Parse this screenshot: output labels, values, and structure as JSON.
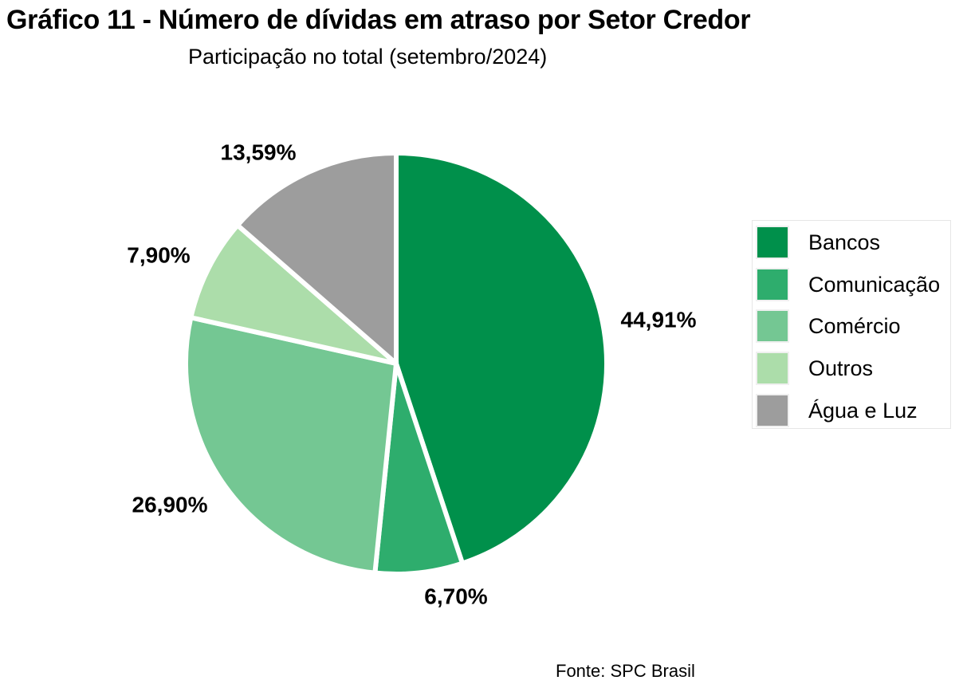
{
  "title": "Gráfico 11 - Número de dívidas em atraso por Setor Credor",
  "subtitle": "Participação no total (setembro/2024)",
  "source": "Fonte: SPC Brasil",
  "chart_data": {
    "type": "pie",
    "title": "Gráfico 11 - Número de dívidas em atraso por Setor Credor",
    "subtitle": "Participação no total (setembro/2024)",
    "categories": [
      "Bancos",
      "Comunicação",
      "Comércio",
      "Outros",
      "Água e Luz"
    ],
    "values": [
      44.91,
      6.7,
      26.9,
      7.9,
      13.59
    ],
    "labels": [
      "44,91%",
      "6,70%",
      "26,90%",
      "7,90%",
      "13,59%"
    ],
    "colors": [
      "#00904B",
      "#2EAD6D",
      "#74C793",
      "#ACDDAA",
      "#9D9D9D"
    ],
    "legend_position": "right",
    "start": "top, clockwise"
  }
}
